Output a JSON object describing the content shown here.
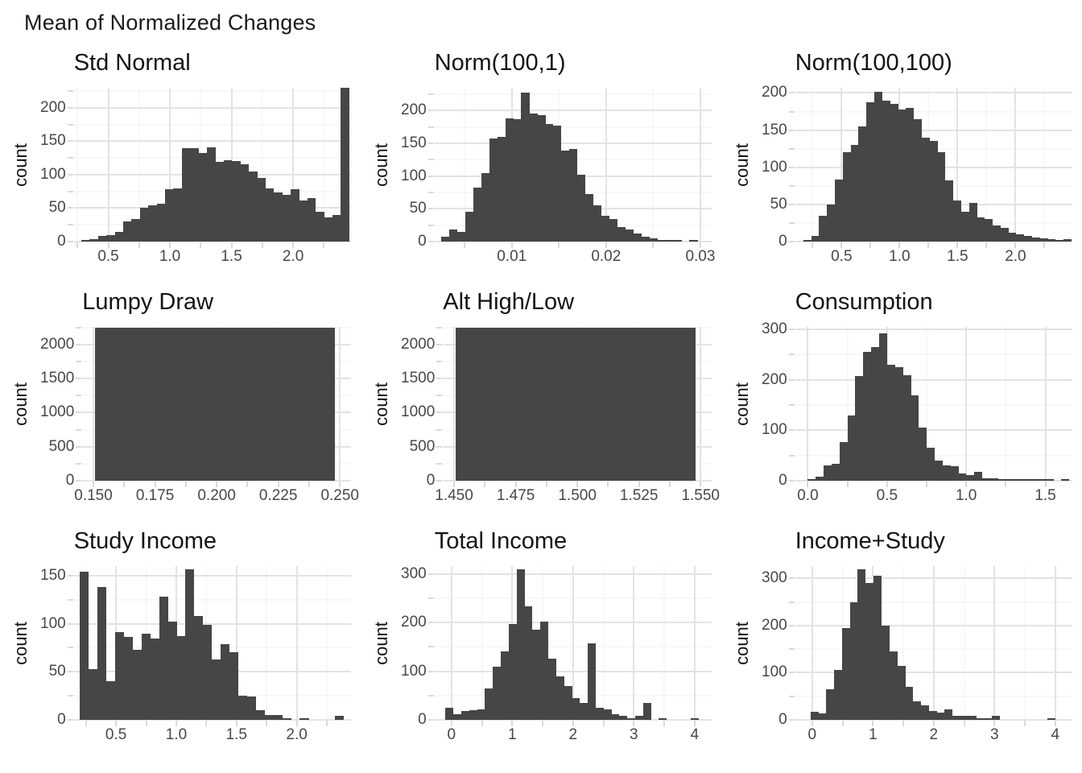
{
  "page_title": "Mean of Normalized Changes",
  "colors": {
    "bar_fill": "#464646",
    "grid_major": "#e3e3e3",
    "grid_minor": "#f1f1f1",
    "axis_tick_mark": "#d9d9d9",
    "tick_label_text": "#474747",
    "title_text": "#141414",
    "background": "#ffffff"
  },
  "chart_data": [
    {
      "type": "bar",
      "subtype": "histogram",
      "title": "Std Normal",
      "xlabel": "",
      "ylabel": "count",
      "grid": true,
      "legend": false,
      "xlim": [
        0.22,
        2.47
      ],
      "ylim": [
        0,
        230
      ],
      "yticks": [
        0,
        50,
        100,
        150,
        200
      ],
      "ytick_labels": [
        "0",
        "50",
        "100",
        "150",
        "200"
      ],
      "yticks_minor": [
        25,
        75,
        125,
        175,
        225
      ],
      "xticks": [
        0.5,
        1.0,
        1.5,
        2.0
      ],
      "xtick_labels": [
        "0.5",
        "1.0",
        "1.5",
        "2.0"
      ],
      "xticks_minor": [
        0.25,
        0.75,
        1.25,
        1.75,
        2.25
      ],
      "bin_start": 0.28,
      "bin_width": 0.068,
      "values": [
        2,
        4,
        8,
        10,
        14,
        30,
        34,
        50,
        54,
        57,
        78,
        80,
        140,
        140,
        132,
        141,
        119,
        122,
        120,
        116,
        105,
        95,
        80,
        74,
        70,
        78,
        62,
        65,
        45,
        36,
        40,
        230
      ]
    },
    {
      "type": "bar",
      "subtype": "histogram",
      "title": "Norm(100,1)",
      "xlabel": "",
      "ylabel": "count",
      "grid": true,
      "legend": false,
      "xlim": [
        0.0018,
        0.0312
      ],
      "ylim": [
        0,
        235
      ],
      "yticks": [
        0,
        50,
        100,
        150,
        200
      ],
      "ytick_labels": [
        "0",
        "50",
        "100",
        "150",
        "200"
      ],
      "yticks_minor": [
        25,
        75,
        125,
        175,
        225
      ],
      "xticks": [
        0.01,
        0.02,
        0.03
      ],
      "xtick_labels": [
        "0.01",
        "0.02",
        "0.03"
      ],
      "xticks_minor": [
        0.005,
        0.015,
        0.025
      ],
      "bin_start": 0.0025,
      "bin_width": 0.00085,
      "values": [
        8,
        18,
        15,
        45,
        82,
        105,
        158,
        160,
        188,
        187,
        228,
        196,
        193,
        180,
        177,
        139,
        141,
        102,
        73,
        55,
        40,
        34,
        22,
        18,
        12,
        8,
        5,
        3,
        2,
        1,
        0,
        2
      ]
    },
    {
      "type": "bar",
      "subtype": "histogram",
      "title": "Norm(100,100)",
      "xlabel": "",
      "ylabel": "count",
      "grid": true,
      "legend": false,
      "xlim": [
        0.1,
        2.49
      ],
      "ylim": [
        0,
        207
      ],
      "yticks": [
        0,
        50,
        100,
        150,
        200
      ],
      "ytick_labels": [
        "0",
        "50",
        "100",
        "150",
        "200"
      ],
      "yticks_minor": [
        25,
        75,
        125,
        175
      ],
      "xticks": [
        0.5,
        1.0,
        1.5,
        2.0
      ],
      "xtick_labels": [
        "0.5",
        "1.0",
        "1.5",
        "2.0"
      ],
      "xticks_minor": [
        0.25,
        0.75,
        1.25,
        1.75,
        2.25
      ],
      "bin_start": 0.17,
      "bin_width": 0.068,
      "values": [
        2,
        8,
        35,
        50,
        83,
        120,
        130,
        155,
        188,
        202,
        190,
        185,
        178,
        180,
        165,
        140,
        135,
        120,
        82,
        55,
        40,
        52,
        33,
        30,
        22,
        18,
        12,
        10,
        8,
        5,
        4,
        3,
        2,
        3
      ]
    },
    {
      "type": "bar",
      "subtype": "histogram",
      "title": "Lumpy Draw",
      "xlabel": "",
      "ylabel": "count",
      "grid": true,
      "legend": false,
      "xlim": [
        0.1455,
        0.2545
      ],
      "ylim": [
        0,
        2260
      ],
      "yticks": [
        0,
        500,
        1000,
        1500,
        2000
      ],
      "ytick_labels": [
        "0",
        "500",
        "1000",
        "1500",
        "2000"
      ],
      "yticks_minor": [
        250,
        750,
        1250,
        1750,
        2250
      ],
      "xticks": [
        0.15,
        0.175,
        0.2,
        0.225,
        0.25
      ],
      "xtick_labels": [
        "0.150",
        "0.175",
        "0.200",
        "0.225",
        "0.250"
      ],
      "xticks_minor": [
        0.1625,
        0.1875,
        0.2125,
        0.2375
      ],
      "bin_start": 0.1505,
      "bin_width": 0.0975,
      "values": [
        2250
      ]
    },
    {
      "type": "bar",
      "subtype": "histogram",
      "title": "Alt High/Low",
      "xlabel": "",
      "ylabel": "count",
      "grid": true,
      "legend": false,
      "xlim": [
        1.4455,
        1.5545
      ],
      "ylim": [
        0,
        2260
      ],
      "yticks": [
        0,
        500,
        1000,
        1500,
        2000
      ],
      "ytick_labels": [
        "0",
        "500",
        "1000",
        "1500",
        "2000"
      ],
      "yticks_minor": [
        250,
        750,
        1250,
        1750,
        2250
      ],
      "xticks": [
        1.45,
        1.475,
        1.5,
        1.525,
        1.55
      ],
      "xtick_labels": [
        "1.450",
        "1.475",
        "1.500",
        "1.525",
        "1.550"
      ],
      "xticks_minor": [
        1.4625,
        1.4875,
        1.5125,
        1.5375
      ],
      "bin_start": 1.4505,
      "bin_width": 0.0975,
      "values": [
        2250
      ]
    },
    {
      "type": "bar",
      "subtype": "histogram",
      "title": "Consumption",
      "xlabel": "",
      "ylabel": "count",
      "grid": true,
      "legend": false,
      "xlim": [
        -0.08,
        1.67
      ],
      "ylim": [
        0,
        305
      ],
      "yticks": [
        0,
        100,
        200,
        300
      ],
      "ytick_labels": [
        "0",
        "100",
        "200",
        "300"
      ],
      "yticks_minor": [
        50,
        150,
        250
      ],
      "xticks": [
        0.0,
        0.5,
        1.0,
        1.5
      ],
      "xtick_labels": [
        "0.0",
        "0.5",
        "1.0",
        "1.5"
      ],
      "xticks_minor": [
        0.25,
        0.75,
        1.25
      ],
      "bin_start": 0.0,
      "bin_width": 0.05,
      "values": [
        3,
        8,
        30,
        33,
        77,
        130,
        207,
        255,
        265,
        293,
        230,
        225,
        210,
        170,
        105,
        66,
        40,
        30,
        28,
        15,
        12,
        18,
        5,
        5,
        4,
        3,
        2,
        3,
        2,
        1,
        1,
        0,
        2
      ]
    },
    {
      "type": "bar",
      "subtype": "histogram",
      "title": "Study Income",
      "xlabel": "",
      "ylabel": "count",
      "grid": true,
      "legend": false,
      "xlim": [
        0.15,
        2.45
      ],
      "ylim": [
        0,
        160
      ],
      "yticks": [
        0,
        50,
        100,
        150
      ],
      "ytick_labels": [
        "0",
        "50",
        "100",
        "150"
      ],
      "yticks_minor": [
        25,
        75,
        125
      ],
      "xticks": [
        0.5,
        1.0,
        1.5,
        2.0
      ],
      "xtick_labels": [
        "0.5",
        "1.0",
        "1.5",
        "2.0"
      ],
      "xticks_minor": [
        0.25,
        0.75,
        1.25,
        1.75,
        2.25
      ],
      "bin_start": 0.2,
      "bin_width": 0.073,
      "values": [
        154,
        53,
        138,
        40,
        91,
        86,
        73,
        90,
        85,
        128,
        102,
        87,
        157,
        108,
        99,
        63,
        79,
        70,
        25,
        24,
        10,
        5,
        5,
        2,
        0,
        2,
        0,
        0,
        0,
        4
      ]
    },
    {
      "type": "bar",
      "subtype": "histogram",
      "title": "Total Income",
      "xlabel": "",
      "ylabel": "count",
      "grid": true,
      "legend": false,
      "xlim": [
        -0.28,
        4.28
      ],
      "ylim": [
        0,
        316
      ],
      "yticks": [
        0,
        100,
        200,
        300
      ],
      "ytick_labels": [
        "0",
        "100",
        "200",
        "300"
      ],
      "yticks_minor": [
        50,
        150,
        250
      ],
      "xticks": [
        0,
        1,
        2,
        3,
        4
      ],
      "xtick_labels": [
        "0",
        "1",
        "2",
        "3",
        "4"
      ],
      "xticks_minor": [
        0.5,
        1.5,
        2.5,
        3.5
      ],
      "bin_start": -0.1,
      "bin_width": 0.13,
      "values": [
        25,
        12,
        18,
        20,
        22,
        65,
        110,
        140,
        197,
        310,
        233,
        185,
        202,
        125,
        90,
        70,
        45,
        35,
        157,
        25,
        22,
        12,
        8,
        2,
        8,
        35,
        0,
        1,
        0,
        0,
        0,
        2
      ]
    },
    {
      "type": "bar",
      "subtype": "histogram",
      "title": "Income+Study",
      "xlabel": "",
      "ylabel": "count",
      "grid": true,
      "legend": false,
      "xlim": [
        -0.28,
        4.28
      ],
      "ylim": [
        0,
        326
      ],
      "yticks": [
        0,
        100,
        200,
        300
      ],
      "ytick_labels": [
        "0",
        "100",
        "200",
        "300"
      ],
      "yticks_minor": [
        50,
        150,
        250
      ],
      "xticks": [
        0,
        1,
        2,
        3,
        4
      ],
      "xtick_labels": [
        "0",
        "1",
        "2",
        "3",
        "4"
      ],
      "xticks_minor": [
        0.5,
        1.5,
        2.5,
        3.5
      ],
      "bin_start": -0.03,
      "bin_width": 0.13,
      "values": [
        17,
        14,
        65,
        105,
        195,
        250,
        320,
        290,
        305,
        200,
        145,
        115,
        70,
        40,
        30,
        18,
        15,
        22,
        8,
        8,
        8,
        2,
        2,
        8,
        0,
        0,
        0,
        0,
        0,
        0,
        1
      ]
    }
  ]
}
